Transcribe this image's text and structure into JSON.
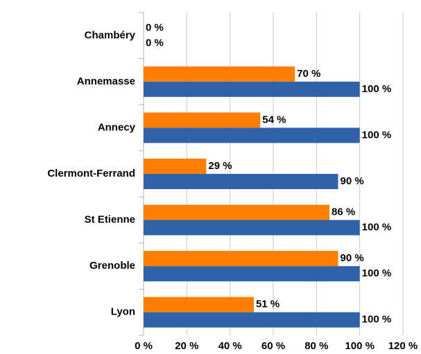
{
  "chart_data": {
    "type": "hbar",
    "categories": [
      "Chambéry",
      "Annemasse",
      "Annecy",
      "Clermont-Ferrand",
      "St Etienne",
      "Grenoble",
      "Lyon"
    ],
    "series": [
      {
        "color": "#ff7f00",
        "values": [
          0,
          70,
          54,
          29,
          86,
          90,
          51
        ],
        "value_labels": [
          "0 %",
          "70 %",
          "54 %",
          "29 %",
          "86 %",
          "90 %",
          "51 %"
        ]
      },
      {
        "color": "#2f62a8",
        "values": [
          0,
          100,
          100,
          90,
          100,
          100,
          100
        ],
        "value_labels": [
          "0 %",
          "100 %",
          "100 %",
          "90 %",
          "100 %",
          "100 %",
          "100 %"
        ]
      }
    ],
    "xlim": [
      0,
      120
    ],
    "xticks": [
      {
        "value": 0,
        "label": "0 %"
      },
      {
        "value": 20,
        "label": "20 %"
      },
      {
        "value": 40,
        "label": "40 %"
      },
      {
        "value": 60,
        "label": "60 %"
      },
      {
        "value": 80,
        "label": "80 %"
      },
      {
        "value": 100,
        "label": "100 %"
      },
      {
        "value": 120,
        "label": "120 %"
      }
    ],
    "grid": true
  }
}
